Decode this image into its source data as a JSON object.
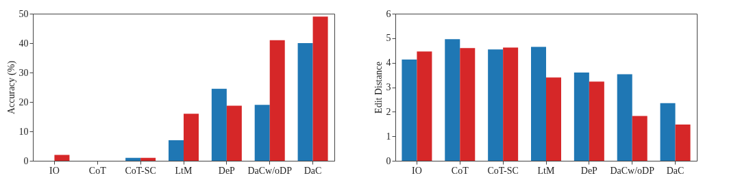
{
  "chart_data": [
    {
      "type": "bar",
      "ylabel": "Accuracy (%)",
      "categories": [
        "IO",
        "CoT",
        "CoT-SC",
        "LtM",
        "DeP",
        "DaCw/oDP",
        "DaC"
      ],
      "ylim": [
        0,
        50
      ],
      "yticks": [
        0,
        10,
        20,
        30,
        40,
        50
      ],
      "grid": false,
      "legend": false,
      "series": [
        {
          "color": "#1f77b4",
          "values": [
            0,
            0,
            1,
            7,
            24.5,
            19,
            40
          ]
        },
        {
          "color": "#d62728",
          "values": [
            2,
            0,
            1,
            16,
            18.7,
            41,
            49
          ]
        }
      ]
    },
    {
      "type": "bar",
      "ylabel": "Edit Distance",
      "categories": [
        "IO",
        "CoT",
        "CoT-SC",
        "LtM",
        "DeP",
        "DaCw/oDP",
        "DaC"
      ],
      "ylim": [
        0,
        6
      ],
      "yticks": [
        0,
        1,
        2,
        3,
        4,
        5,
        6
      ],
      "grid": false,
      "legend": false,
      "series": [
        {
          "color": "#1f77b4",
          "values": [
            4.13,
            4.96,
            4.54,
            4.65,
            3.6,
            3.53,
            2.35
          ]
        },
        {
          "color": "#d62728",
          "values": [
            4.46,
            4.6,
            4.62,
            3.4,
            3.23,
            1.83,
            1.48
          ]
        }
      ]
    }
  ]
}
